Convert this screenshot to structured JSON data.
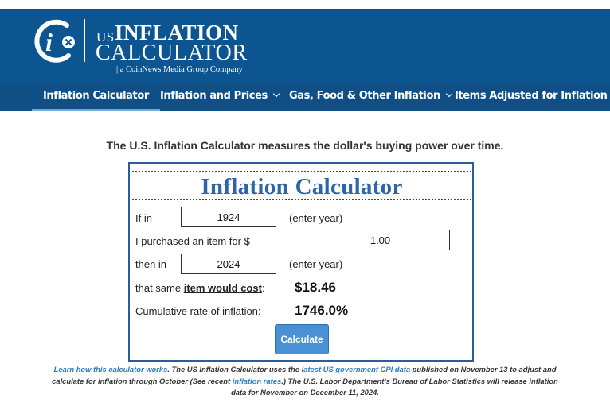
{
  "brand": {
    "logo_letter": "i",
    "us": "US",
    "inflation": "INFLATION",
    "calculator": "CALCULATOR",
    "subtitle": "| a CoinNews Media Group Company"
  },
  "nav": {
    "items": [
      {
        "label": "Inflation Calculator",
        "active": true
      },
      {
        "label": "Inflation and Prices",
        "dropdown": true
      },
      {
        "label": "Gas, Food & Other Inflation",
        "dropdown": true
      },
      {
        "label": "Items Adjusted for Inflation",
        "dropdown": true
      }
    ]
  },
  "intro": "The U.S. Inflation Calculator measures the dollar's buying power over time.",
  "calculator": {
    "title": "Inflation Calculator",
    "if_in_label": "If in",
    "start_year": "1924",
    "enter_year_1": "(enter year)",
    "purchased_label": "I purchased an item for $",
    "amount": "1.00",
    "then_in_label": "then in",
    "end_year": "2024",
    "enter_year_2": "(enter year)",
    "same_prefix": "that same ",
    "same_underlined": "item would cost",
    "same_suffix": ":",
    "cost_value": "$18.46",
    "cumulative_label": "Cumulative rate of inflation:",
    "cumulative_value": "1746.0%",
    "button_label": "Calculate"
  },
  "footer": {
    "link1": "Learn how this calculator works",
    "text1": ". The US Inflation Calculator uses the ",
    "link2": "latest US government CPI data",
    "text2": " published on November 13 to adjust and calculate for inflation through October (See recent ",
    "link3": "inflation rates",
    "text3": ".) The U.S. Labor Department's Bureau of Labor Statistics will release inflation data for November on December 11, 2024."
  },
  "colors": {
    "header_bg": "#0d5591",
    "nav_bg": "#0f4f86",
    "title_blue": "#2e64a8",
    "button_blue": "#4a90d4",
    "link_blue": "#2a7bc4"
  }
}
